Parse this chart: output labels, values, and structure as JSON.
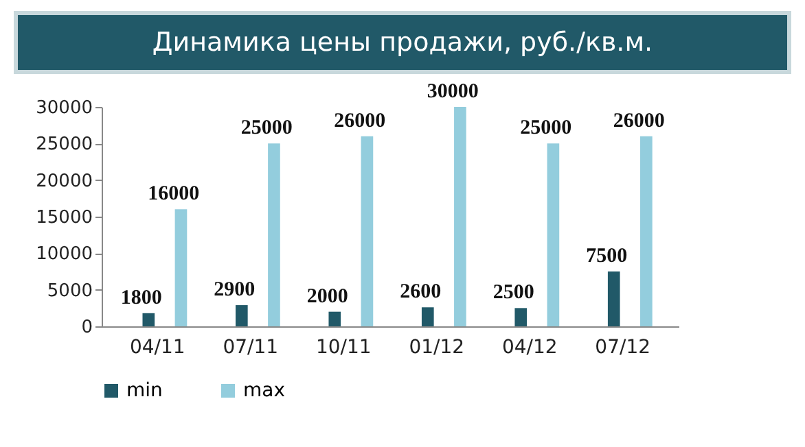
{
  "chart_data": {
    "type": "bar",
    "title": "Динамика цены продажи, руб./кв.м.",
    "categories": [
      "04/11",
      "07/11",
      "10/11",
      "01/12",
      "04/12",
      "07/12"
    ],
    "series": [
      {
        "name": "min",
        "color": "#215968",
        "values": [
          1800,
          2900,
          2000,
          2600,
          2500,
          7500
        ]
      },
      {
        "name": "max",
        "color": "#93cddd",
        "values": [
          16000,
          25000,
          26000,
          30000,
          25000,
          26000
        ]
      }
    ],
    "ylim": [
      0,
      30000
    ],
    "yticks": [
      0,
      5000,
      10000,
      15000,
      20000,
      25000,
      30000
    ],
    "grid": false,
    "legend": "bottom",
    "data_labels": true
  }
}
